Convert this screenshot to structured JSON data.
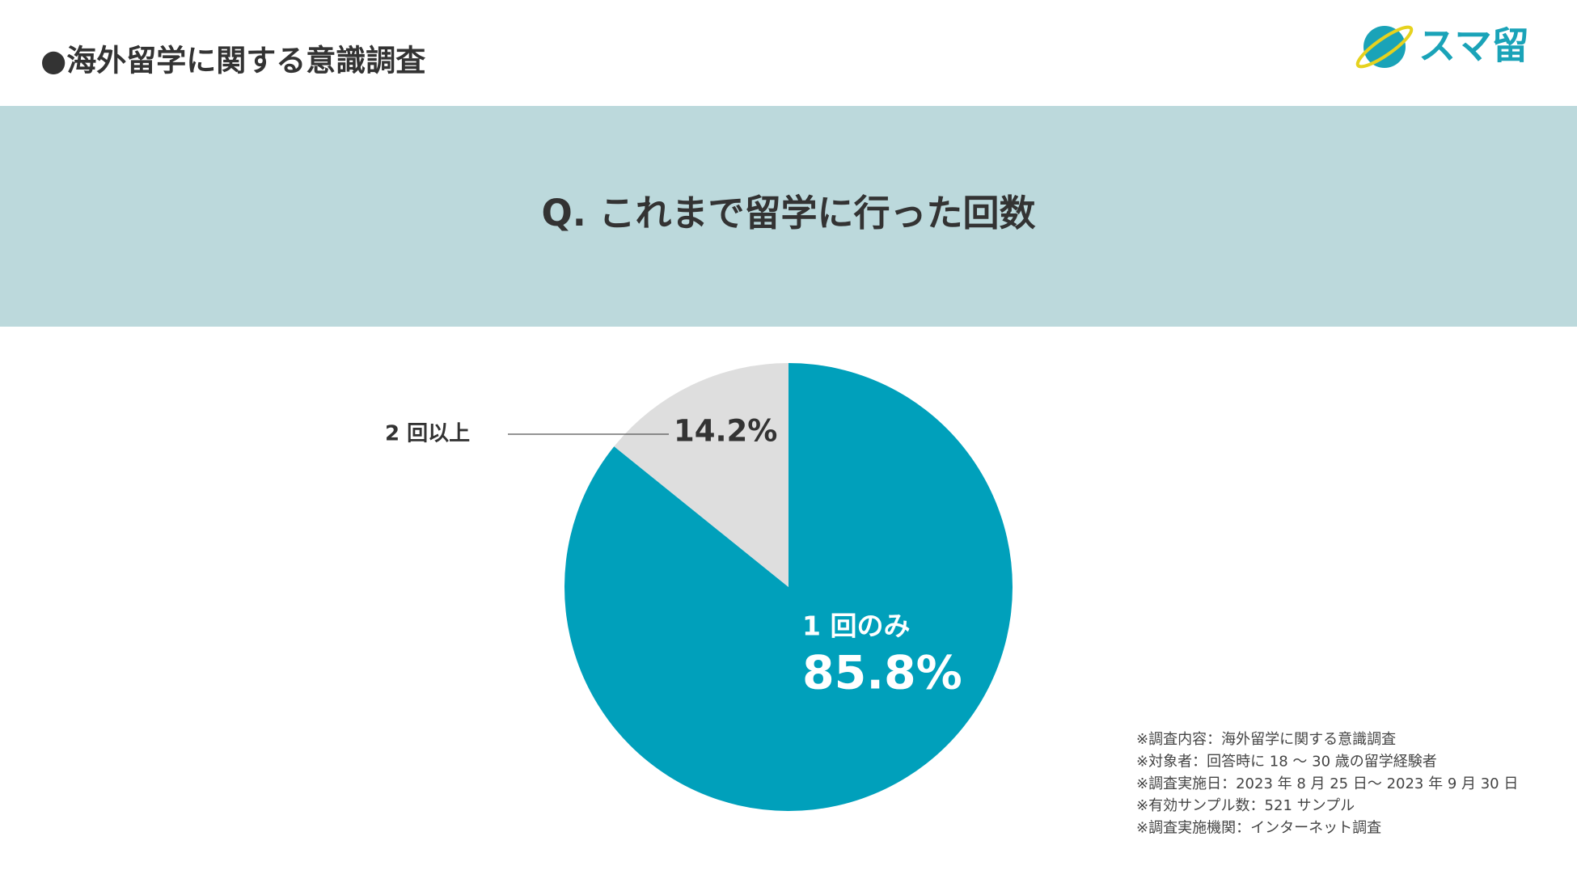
{
  "header": {
    "title": "●海外留学に関する意識調査"
  },
  "logo": {
    "text": "スマ留"
  },
  "chart_data": {
    "type": "pie",
    "title": "Q. これまで留学に行った回数",
    "categories": [
      "1 回のみ",
      "2 回以上"
    ],
    "values": [
      85.8,
      14.2
    ],
    "value_labels": [
      "85.8%",
      "14.2%"
    ],
    "colors": [
      "#00a0bb",
      "#dedede"
    ]
  },
  "notes": [
    "※調査内容：海外留学に関する意識調査",
    "※対象者：回答時に 18 ～ 30 歳の留学経験者",
    "※調査実施日：2023 年 8 月 25 日～ 2023 年 9 月 30 日",
    "※有効サンプル数：521 サンプル",
    "※調査実施機関：インターネット調査"
  ]
}
